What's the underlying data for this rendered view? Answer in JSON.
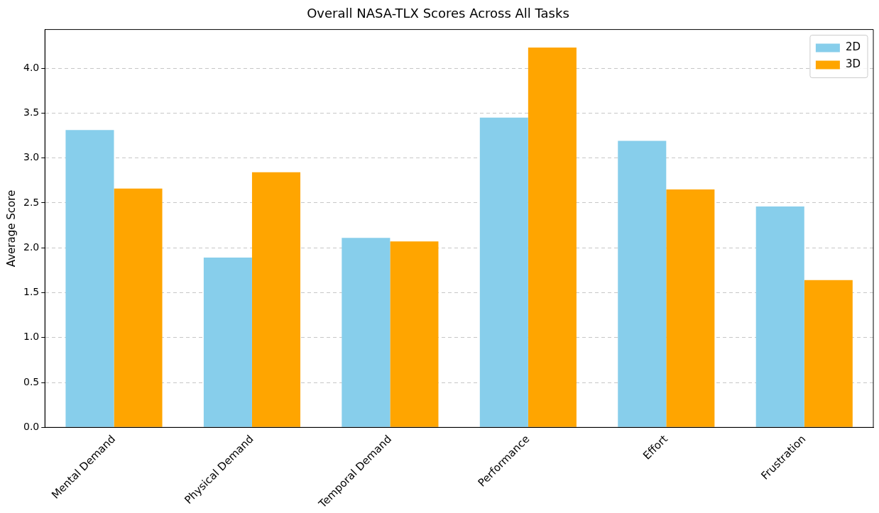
{
  "chart_data": {
    "type": "bar",
    "title": "Overall NASA-TLX Scores Across All Tasks",
    "ylabel": "Average Score",
    "categories": [
      "Mental Demand",
      "Physical Demand",
      "Temporal Demand",
      "Performance",
      "Effort",
      "Frustration"
    ],
    "series": [
      {
        "name": "2D",
        "color": "#87ceeb",
        "values": [
          3.31,
          1.89,
          2.11,
          3.45,
          3.19,
          2.46
        ]
      },
      {
        "name": "3D",
        "color": "#ffa500",
        "values": [
          2.66,
          2.84,
          2.07,
          4.23,
          2.65,
          1.64
        ]
      }
    ],
    "ylim": [
      0,
      4.43
    ],
    "yticks": [
      {
        "value": 0,
        "label": "0.0"
      },
      0.5,
      {
        "value": 1,
        "label": "1.0"
      },
      1.5,
      {
        "value": 2,
        "label": "2.0"
      },
      2.5,
      {
        "value": 3,
        "label": "3.0"
      },
      3.5,
      {
        "value": 4,
        "label": "4.0"
      }
    ],
    "grid": "y",
    "legend": "top right"
  }
}
